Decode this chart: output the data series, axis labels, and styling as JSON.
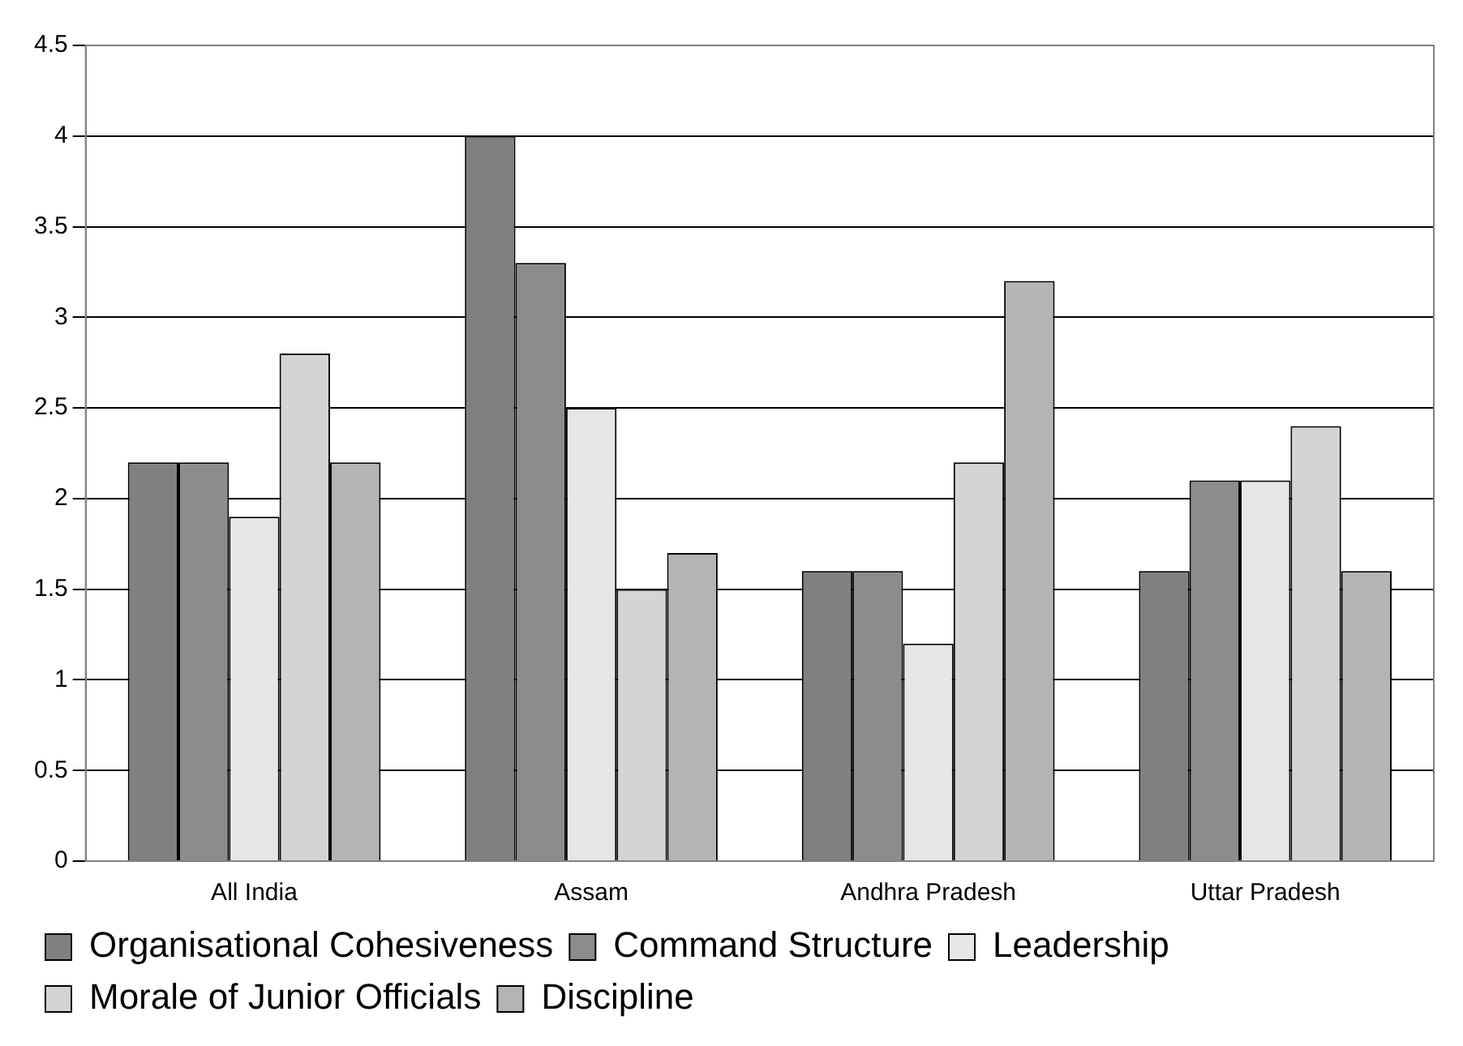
{
  "chart_data": {
    "type": "bar",
    "categories": [
      "All India",
      "Assam",
      "Andhra Pradesh",
      "Uttar Pradesh"
    ],
    "series": [
      {
        "name": "Organisational Cohesiveness",
        "color": "#808080",
        "values": [
          2.2,
          4.0,
          1.6,
          1.6
        ]
      },
      {
        "name": "Command Structure",
        "color": "#8c8c8c",
        "values": [
          2.2,
          3.3,
          1.6,
          2.1
        ]
      },
      {
        "name": "Leadership",
        "color": "#e6e6e6",
        "values": [
          1.9,
          2.5,
          1.2,
          2.1
        ]
      },
      {
        "name": "Morale of Junior Officials",
        "color": "#d4d4d4",
        "values": [
          2.8,
          1.5,
          2.2,
          2.4
        ]
      },
      {
        "name": "Discipline",
        "color": "#b4b4b4",
        "values": [
          2.2,
          1.7,
          3.2,
          1.6
        ]
      }
    ],
    "ylim": [
      0,
      4.5
    ],
    "yticks": [
      0,
      0.5,
      1,
      1.5,
      2,
      2.5,
      3,
      3.5,
      4,
      4.5
    ],
    "grid": "y",
    "legend": "bottom"
  }
}
